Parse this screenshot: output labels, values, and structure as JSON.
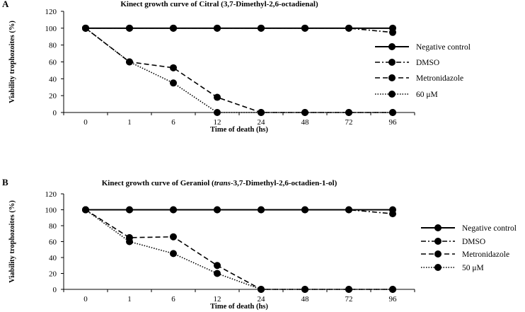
{
  "chart_data": [
    {
      "panel": "A",
      "type": "line",
      "title_parts": [
        {
          "text": "Kinect growth curve of Citral (3,7-Dimethyl-2,6-octadienal)",
          "italic": false
        }
      ],
      "xlabel": "Time of death (hs)",
      "ylabel": "Viability trophozoites (%)",
      "categories": [
        "0",
        "1",
        "6",
        "12",
        "24",
        "48",
        "72",
        "96"
      ],
      "ylim": [
        0,
        120
      ],
      "yticks": [
        "0",
        "20",
        "40",
        "60",
        "80",
        "100",
        "120"
      ],
      "grid": false,
      "legend_position": "right",
      "series": [
        {
          "name": "Negative control",
          "style": "solid",
          "values": [
            100,
            100,
            100,
            100,
            100,
            100,
            100,
            100
          ]
        },
        {
          "name": "DMSO",
          "style": "dashdot",
          "values": [
            100,
            100,
            100,
            100,
            100,
            100,
            100,
            95
          ]
        },
        {
          "name": "Metronidazole",
          "style": "dashed",
          "values": [
            100,
            60,
            53,
            18,
            0,
            0,
            0,
            0
          ]
        },
        {
          "name": "60 μM",
          "style": "dotted",
          "values": [
            100,
            60,
            35,
            0,
            0,
            0,
            0,
            0
          ]
        }
      ]
    },
    {
      "panel": "B",
      "type": "line",
      "title_parts": [
        {
          "text": "Kinect growth curve of Geraniol (",
          "italic": false
        },
        {
          "text": "trans",
          "italic": true
        },
        {
          "text": "-3,7-Dimethyl-2,6-octadien-1-ol)",
          "italic": false
        }
      ],
      "xlabel": "Time of death (hs)",
      "ylabel": "Viability trophozoites (%)",
      "categories": [
        "0",
        "1",
        "6",
        "12",
        "24",
        "48",
        "72",
        "96"
      ],
      "ylim": [
        0,
        120
      ],
      "yticks": [
        "0",
        "20",
        "40",
        "60",
        "80",
        "100",
        "120"
      ],
      "grid": false,
      "legend_position": "right",
      "series": [
        {
          "name": "Negative control",
          "style": "solid",
          "values": [
            100,
            100,
            100,
            100,
            100,
            100,
            100,
            100
          ]
        },
        {
          "name": "DMSO",
          "style": "dashdot",
          "values": [
            100,
            100,
            100,
            100,
            100,
            100,
            100,
            95
          ]
        },
        {
          "name": "Metronidazole",
          "style": "dashed",
          "values": [
            100,
            65,
            66,
            30,
            0,
            0,
            0,
            0
          ]
        },
        {
          "name": "50 μM",
          "style": "dotted",
          "values": [
            100,
            60,
            45,
            20,
            0,
            0,
            0,
            0
          ]
        }
      ]
    }
  ]
}
